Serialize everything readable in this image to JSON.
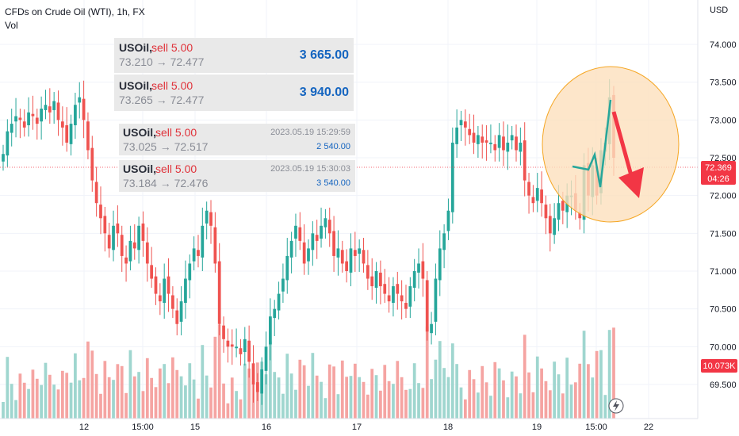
{
  "header": {
    "title": "CFDs on Crude Oil (WTI), 1h, FX",
    "vol_label": "Vol"
  },
  "axis": {
    "currency": "USD",
    "price_ticks": [
      "74.000",
      "73.500",
      "73.000",
      "72.500",
      "72.000",
      "71.500",
      "71.000",
      "70.500",
      "70.000",
      "69.500"
    ],
    "time_ticks": [
      "12",
      "15:00",
      "15",
      "16",
      "17",
      "18",
      "19",
      "15:00",
      "22"
    ],
    "last_price": "72.369",
    "countdown": "04:26",
    "volume_badge": "10.073K"
  },
  "trade_cards": [
    {
      "symbol": "USOil,",
      "side": " sell 5.00",
      "range": "73.210 → 72.477",
      "amount": "3 665.00"
    },
    {
      "symbol": "USOil,",
      "side": " sell 5.00",
      "range": "73.265 → 72.477",
      "amount": "3 940.00"
    }
  ],
  "trade_cards_small": [
    {
      "symbol": "USOil,",
      "side": " sell 5.00",
      "range": "73.025 → 72.517",
      "time": "2023.05.19 15:29:59",
      "amount": "2 540.00"
    },
    {
      "symbol": "USOil,",
      "side": " sell 5.00",
      "range": "73.184 → 72.476",
      "time": "2023.05.19 15:30:03",
      "amount": "3 540.00"
    }
  ],
  "colors": {
    "up": "#26a69a",
    "down": "#ef5350",
    "vol_up": "#9fd6cf",
    "vol_down": "#f5a4a2",
    "annotation_fill": "#fde0bd",
    "annotation_stroke": "#f5a623",
    "arrow": "#f23645"
  },
  "chart_data": {
    "type": "candlestick",
    "title": "CFDs on Crude Oil (WTI), 1h, FX",
    "ylabel": "USD",
    "ylim": [
      69.1,
      74.4
    ],
    "x_ticks": [
      "12",
      "15:00",
      "15",
      "16",
      "17",
      "18",
      "19",
      "15:00",
      "22"
    ],
    "close": [
      72.55,
      72.85,
      72.95,
      73.05,
      73.0,
      72.9,
      73.1,
      73.05,
      72.95,
      73.15,
      73.2,
      73.1,
      73.25,
      73.0,
      72.9,
      72.7,
      72.95,
      73.2,
      73.3,
      73.0,
      72.6,
      72.2,
      71.9,
      71.7,
      71.5,
      71.3,
      71.6,
      71.5,
      71.2,
      71.1,
      71.4,
      71.3,
      71.6,
      71.4,
      71.1,
      70.9,
      70.7,
      70.6,
      70.9,
      70.7,
      70.5,
      70.3,
      70.6,
      70.9,
      71.1,
      71.3,
      71.2,
      71.6,
      71.8,
      71.6,
      71.1,
      70.3,
      70.1,
      70.0,
      70.0,
      70.0,
      69.9,
      70.1,
      69.8,
      69.5,
      69.4,
      69.7,
      70.0,
      70.4,
      70.5,
      70.7,
      70.9,
      71.2,
      71.4,
      71.6,
      71.4,
      71.1,
      71.3,
      71.5,
      71.4,
      71.6,
      71.7,
      71.5,
      71.2,
      71.3,
      71.1,
      71.0,
      71.3,
      71.2,
      71.3,
      71.1,
      70.9,
      70.8,
      71.0,
      70.8,
      70.7,
      70.6,
      70.8,
      70.7,
      70.6,
      70.5,
      70.8,
      71.0,
      71.1,
      70.9,
      70.2,
      70.3,
      70.9,
      71.3,
      71.5,
      71.8,
      72.7,
      72.9,
      73.0,
      72.9,
      72.8,
      72.7,
      72.8,
      72.7,
      72.7,
      72.7,
      72.6,
      72.8,
      72.6,
      72.7,
      72.8,
      72.6,
      72.7,
      72.2,
      72.0,
      71.9,
      72.1,
      71.9,
      71.7,
      71.5,
      71.7,
      71.9,
      71.8,
      72.0,
      72.0,
      71.8,
      71.7,
      72.4,
      72.0,
      72.4,
      72.0,
      72.6,
      72.7,
      73.3,
      72.5
    ]
  }
}
